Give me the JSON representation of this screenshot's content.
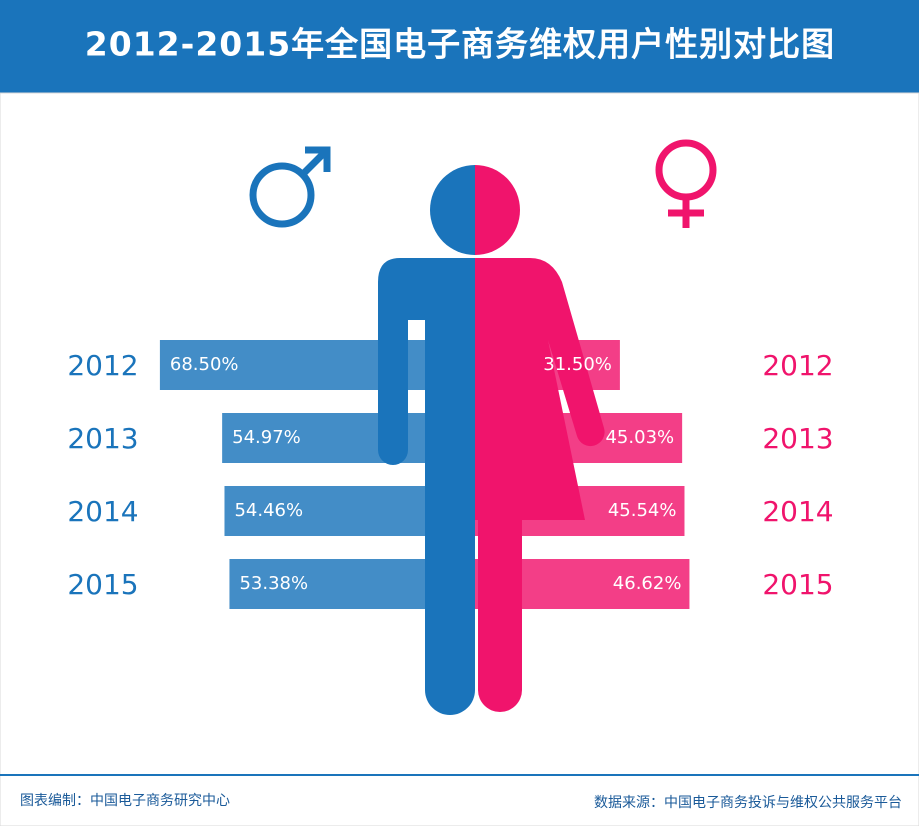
{
  "chart_data": {
    "type": "diverging-bar",
    "title": "2012-2015年全国电子商务维权用户性别对比图",
    "categories": [
      "2012",
      "2013",
      "2014",
      "2015"
    ],
    "series": [
      {
        "color": "#1a74bb",
        "values": [
          68.5,
          54.97,
          54.46,
          53.38
        ],
        "value_labels": [
          "68.50%",
          "54.97%",
          "54.46%",
          "53.38%"
        ]
      },
      {
        "color": "#f0146c",
        "values": [
          31.5,
          45.03,
          45.54,
          46.62
        ],
        "value_labels": [
          "31.50%",
          "45.03%",
          "45.54%",
          "46.62%"
        ]
      }
    ],
    "footer_left": "图表编制：中国电子商务研究中心",
    "footer_right": "数据来源：中国电子商务投诉与维权公共服务平台"
  }
}
